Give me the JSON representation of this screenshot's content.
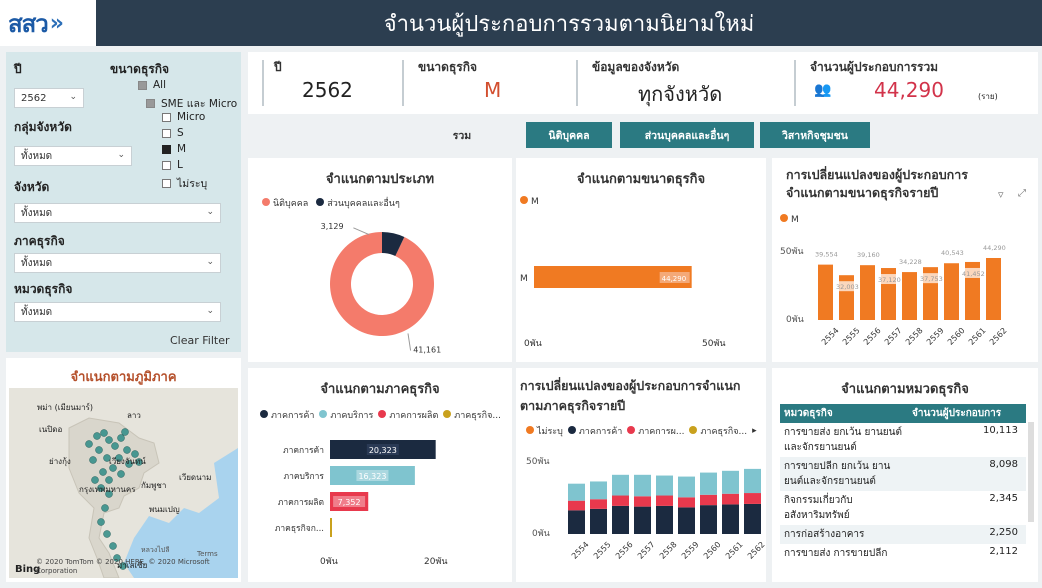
{
  "header": {
    "logo_text": "สสว",
    "logo_arrows": "»",
    "title": "จำนวนผู้ประกอบการรวมตามนิยามใหม่"
  },
  "filters": {
    "year_label": "ปี",
    "year_value": "2562",
    "size_label": "ขนาดธุรกิจ",
    "size_options": [
      {
        "label": "All",
        "state": "partial"
      },
      {
        "label": "SME และ Micro",
        "state": "partial"
      },
      {
        "label": "Micro",
        "state": "off"
      },
      {
        "label": "S",
        "state": "off"
      },
      {
        "label": "M",
        "state": "on"
      },
      {
        "label": "L",
        "state": "off"
      },
      {
        "label": "ไม่ระบุ",
        "state": "off"
      }
    ],
    "province_group_label": "กลุ่มจังหวัด",
    "province_group_value": "ทั้งหมด",
    "province_label": "จังหวัด",
    "province_value": "ทั้งหมด",
    "sector_label": "ภาคธุรกิจ",
    "sector_value": "ทั้งหมด",
    "category_label": "หมวดธุรกิจ",
    "category_value": "ทั้งหมด",
    "clear_filter": "Clear Filter"
  },
  "kpi": {
    "year_label": "ปี",
    "year_value": "2562",
    "size_label": "ขนาดธุรกิจ",
    "size_value": "M",
    "province_label": "ข้อมูลของจังหวัด",
    "province_value": "ทุกจังหวัด",
    "total_label": "จำนวนผู้ประกอบการรวม",
    "total_value": "44,290",
    "total_unit": "(ราย)"
  },
  "tabs": [
    {
      "label": "รวม",
      "active": true
    },
    {
      "label": "นิติบุคคล",
      "active": false
    },
    {
      "label": "ส่วนบุคคลและอื่นๆ",
      "active": false
    },
    {
      "label": "วิสาหกิจชุมชน",
      "active": false
    }
  ],
  "colors": {
    "orange": "#f07a22",
    "salmon": "#f47b6b",
    "navy": "#1b2a40",
    "teal": "#7fc4cf",
    "red": "#e8394d",
    "yellow": "#c9a11d",
    "tab_teal": "#2b7a82"
  },
  "map": {
    "title": "จำแนกตามภูมิภาค",
    "labels": [
      "พม่า (เมียนมาร์)",
      "ลาว",
      "เนปิดอ",
      "เวียงจันทน์",
      "ย่างกุ้ง",
      "กรุงเทพมหานคร",
      "กัมพูชา",
      "เวียดนาม",
      "พนมเปญ",
      "หลวงไปลี",
      "มาเลเซีย"
    ],
    "bing": "Bing",
    "copyright": "© 2020 TomTom © 2020 HERE, © 2020 Microsoft Corporation",
    "terms": "Terms"
  },
  "chart_data": [
    {
      "id": "by_type",
      "type": "pie",
      "title": "จำแนกตามประเภท",
      "categories": [
        "นิติบุคคล",
        "ส่วนบุคคลและอื่นๆ"
      ],
      "values": [
        41161,
        3129
      ],
      "value_labels": [
        "41,161",
        "3,129"
      ]
    },
    {
      "id": "by_size",
      "type": "bar",
      "title": "จำแนกตามขนาดธุรกิจ",
      "series": [
        {
          "name": "M",
          "values": [
            44290
          ]
        }
      ],
      "categories": [
        "M"
      ],
      "value_labels": [
        "44,290"
      ],
      "xlim": [
        0,
        50000
      ],
      "tick_labels": [
        "0พัน",
        "50พัน"
      ]
    },
    {
      "id": "size_trend",
      "type": "bar",
      "title": "การเปลี่ยนแปลงของผู้ประกอบการจำแนกตามขนาดธุรกิจรายปี",
      "series": [
        {
          "name": "M",
          "values": [
            39554,
            32003,
            39160,
            37120,
            34228,
            37753,
            40543,
            41452,
            44290
          ]
        }
      ],
      "categories": [
        "2554",
        "2555",
        "2556",
        "2557",
        "2558",
        "2559",
        "2560",
        "2561",
        "2562"
      ],
      "value_labels": [
        "39,554",
        "32,003",
        "39,160",
        "37,120",
        "34,228",
        "37,753",
        "40,543",
        "41,452",
        "44,290"
      ],
      "ylim": [
        0,
        50000
      ],
      "ytick_labels": [
        "0พัน",
        "50พัน"
      ]
    },
    {
      "id": "by_sector",
      "type": "bar",
      "title": "จำแนกตามภาคธุรกิจ",
      "legend": [
        "ภาคการค้า",
        "ภาคบริการ",
        "ภาคการผลิต",
        "ภาคธุรกิจ..."
      ],
      "categories": [
        "ภาคการค้า",
        "ภาคบริการ",
        "ภาคการผลิต",
        "ภาคธุรกิจก..."
      ],
      "values": [
        20323,
        16323,
        7352,
        292
      ],
      "value_labels": [
        "20,323",
        "16,323",
        "7,352",
        ""
      ],
      "xlim": [
        0,
        20000
      ],
      "tick_labels": [
        "0พัน",
        "20พัน"
      ]
    },
    {
      "id": "sector_trend",
      "type": "bar",
      "title": "การเปลี่ยนแปลงของผู้ประกอบการจำแนกตามภาคธุรกิจรายปี",
      "legend": [
        "ไม่ระบุ",
        "ภาคการค้า",
        "ภาคการผ...",
        "ภาคธุรกิจ..."
      ],
      "categories": [
        "2554",
        "2555",
        "2556",
        "2557",
        "2558",
        "2559",
        "2560",
        "2561",
        "2562"
      ],
      "series": [
        {
          "name": "ภาคการค้า",
          "values": [
            16000,
            17000,
            19000,
            18500,
            19000,
            18000,
            19500,
            20000,
            20323
          ]
        },
        {
          "name": "ภาคการผ...",
          "values": [
            6500,
            6500,
            7000,
            7000,
            7000,
            6800,
            7000,
            7200,
            7352
          ]
        },
        {
          "name": "ภาคบริการ",
          "values": [
            11500,
            12000,
            14000,
            14500,
            13500,
            14000,
            15000,
            15500,
            16323
          ]
        }
      ],
      "ylim": [
        0,
        50000
      ],
      "ytick_labels": [
        "0พัน",
        "50พัน"
      ]
    }
  ],
  "category_table": {
    "title": "จำแนกตามหมวดธุรกิจ",
    "headers": [
      "หมวดธุรกิจ",
      "จำนวนผู้ประกอบการ"
    ],
    "rows": [
      [
        "การขายส่ง ยกเว้น ยานยนต์และจักรยานยนต์",
        "10,113"
      ],
      [
        "การขายปลีก ยกเว้น ยานยนต์และจักรยานยนต์",
        "8,098"
      ],
      [
        "กิจกรรมเกี่ยวกับอสังหาริมทรัพย์",
        "2,345"
      ],
      [
        "การก่อสร้างอาคาร",
        "2,250"
      ],
      [
        "การขายส่ง การขายปลีก",
        "2,112"
      ]
    ]
  }
}
